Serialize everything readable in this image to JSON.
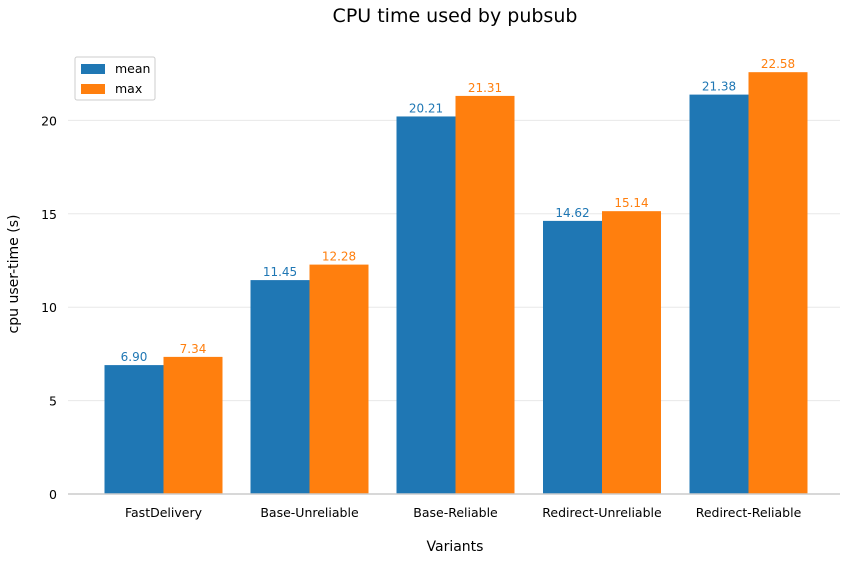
{
  "chart_data": {
    "type": "bar",
    "title": "CPU time used by pubsub",
    "xlabel": "Variants",
    "ylabel": "cpu user-time (s)",
    "categories": [
      "FastDelivery",
      "Base-Unreliable",
      "Base-Reliable",
      "Redirect-Unreliable",
      "Redirect-Reliable"
    ],
    "series": [
      {
        "name": "mean",
        "color": "#1f77b4",
        "values": [
          6.9,
          11.45,
          20.21,
          14.62,
          21.38
        ],
        "labels": [
          "6.90",
          "11.45",
          "20.21",
          "14.62",
          "21.38"
        ]
      },
      {
        "name": "max",
        "color": "#ff7f0e",
        "values": [
          7.34,
          12.28,
          21.31,
          15.14,
          22.58
        ],
        "labels": [
          "7.34",
          "12.28",
          "21.31",
          "15.14",
          "22.58"
        ]
      }
    ],
    "ylim": [
      0,
      23.5
    ],
    "yticks": [
      0,
      5,
      10,
      15,
      20
    ],
    "ytick_labels": [
      "0",
      "5",
      "10",
      "15",
      "20"
    ],
    "grid": "horizontal",
    "legend_position": "top-left"
  }
}
